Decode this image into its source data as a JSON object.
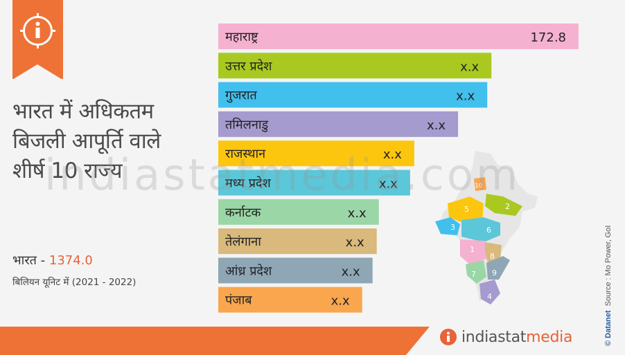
{
  "header": {
    "title_lines": [
      "भारत में अधिकतम",
      "बिजली आपूर्ति वाले",
      "शीर्ष 10 राज्य"
    ]
  },
  "summary": {
    "country_label": "भारत -",
    "country_total": "1374.0",
    "unit_period": "बिलियन यूनिट में (2021 - 2022)"
  },
  "chart_data": {
    "type": "bar",
    "orientation": "horizontal",
    "categories": [
      "महाराष्ट्र",
      "उत्तर प्रदेश",
      "गुजरात",
      "तमिलनाडु",
      "राजस्थान",
      "मध्य प्रदेश",
      "कर्नाटक",
      "तेलंगाना",
      "आंध्र प्रदेश",
      "पंजाब"
    ],
    "value_labels": [
      "172.8",
      "x.x",
      "x.x",
      "x.x",
      "x.x",
      "x.x",
      "x.x",
      "x.x",
      "x.x",
      "x.x"
    ],
    "values": [
      172.8,
      131,
      129,
      115,
      94,
      92,
      77,
      76,
      74,
      69
    ],
    "colors": [
      "#f5b1d0",
      "#a9c920",
      "#41bfed",
      "#a59bce",
      "#fcc60f",
      "#5bc7d9",
      "#9bd6a6",
      "#d9b97c",
      "#8fa6b5",
      "#f9a64f"
    ],
    "xlim": [
      0,
      172.8
    ]
  },
  "map": {
    "region_numbers": [
      "1",
      "2",
      "3",
      "4",
      "5",
      "6",
      "7",
      "8",
      "9",
      "10"
    ]
  },
  "brand": {
    "part1": "indiastat",
    "part2": "media",
    "watermark": "indiastatmedia.com"
  },
  "source": {
    "brand": "© Datanet",
    "text": "Source : Mo Power, GoI"
  },
  "colors": {
    "accent": "#ee7236",
    "brand_orange": "#e8623a"
  }
}
